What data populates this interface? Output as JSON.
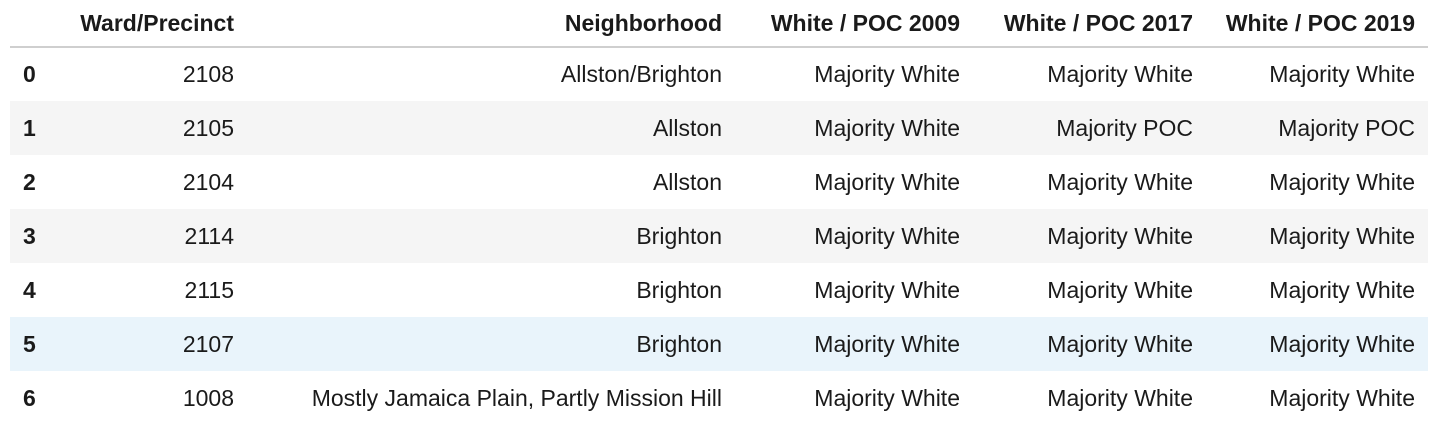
{
  "table": {
    "index_header": "",
    "columns": [
      "Ward/Precinct",
      "Neighborhood",
      "White / POC 2009",
      "White / POC 2017",
      "White / POC 2019"
    ],
    "rows": [
      {
        "index": "0",
        "ward": "2108",
        "neighborhood": "Allston/Brighton",
        "y2009": "Majority White",
        "y2017": "Majority White",
        "y2019": "Majority White"
      },
      {
        "index": "1",
        "ward": "2105",
        "neighborhood": "Allston",
        "y2009": "Majority White",
        "y2017": "Majority POC",
        "y2019": "Majority POC"
      },
      {
        "index": "2",
        "ward": "2104",
        "neighborhood": "Allston",
        "y2009": "Majority White",
        "y2017": "Majority White",
        "y2019": "Majority White"
      },
      {
        "index": "3",
        "ward": "2114",
        "neighborhood": "Brighton",
        "y2009": "Majority White",
        "y2017": "Majority White",
        "y2019": "Majority White"
      },
      {
        "index": "4",
        "ward": "2115",
        "neighborhood": "Brighton",
        "y2009": "Majority White",
        "y2017": "Majority White",
        "y2019": "Majority White"
      },
      {
        "index": "5",
        "ward": "2107",
        "neighborhood": "Brighton",
        "y2009": "Majority White",
        "y2017": "Majority White",
        "y2019": "Majority White"
      },
      {
        "index": "6",
        "ward": "1008",
        "neighborhood": "Mostly Jamaica Plain, Partly Mission Hill",
        "y2009": "Majority White",
        "y2017": "Majority White",
        "y2019": "Majority White"
      }
    ],
    "hovered_row_index": 5
  },
  "colors": {
    "stripe": "#f5f5f5",
    "hover": "#e9f4fb",
    "header_rule": "#cfcfcf",
    "text": "#1a1a1a"
  }
}
